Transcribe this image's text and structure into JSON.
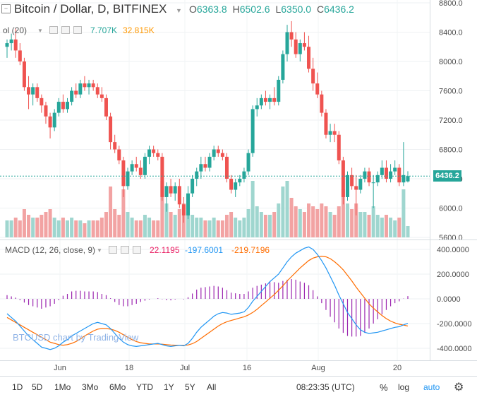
{
  "header": {
    "symbol": "Bitcoin / Dollar, D, BITFINEX",
    "o_label": "O",
    "o_val": "6363.8",
    "h_label": "H",
    "h_val": "6502.6",
    "l_label": "L",
    "l_val": "6350.0",
    "c_label": "C",
    "c_val": "6436.2",
    "vol_name": "ol (20)",
    "vol_a": "7.707K",
    "vol_b": "32.815K"
  },
  "macd_header": {
    "name": "MACD (12, 26, close, 9)",
    "hist": "22.1195",
    "macd": "-197.6001",
    "signal": "-219.7196"
  },
  "watermark": "BTCUSD chart by TradingView",
  "price_axis": {
    "ticks": [
      "8800.0",
      "8400.0",
      "8000.0",
      "7600.0",
      "7200.0",
      "6800.0",
      "6400.0",
      "6000.0",
      "5600.0"
    ],
    "last_price": "6436.2"
  },
  "macd_axis": {
    "ticks": [
      "400.0000",
      "200.0000",
      "0.0000",
      "-200.0000",
      "-400.0000"
    ]
  },
  "time_axis": [
    "Jun",
    "18",
    "Jul",
    "16",
    "Aug",
    "20"
  ],
  "toolbar": {
    "ranges": [
      "1D",
      "5D",
      "1Mo",
      "3Mo",
      "6Mo",
      "YTD",
      "1Y",
      "5Y",
      "All"
    ],
    "clock": "08:23:35 (UTC)",
    "percent": "%",
    "log": "log",
    "auto": "auto"
  },
  "colors": {
    "up": "#26a69a",
    "down": "#ef5350",
    "vol_up": "#9fd6cf",
    "vol_down": "#f2a3a3",
    "macd_line": "#2196f3",
    "signal_line": "#ff6d00",
    "histogram": "#9c27b0",
    "auto": "#2196f3"
  },
  "chart_data": {
    "type": "candlestick",
    "symbol": "BTCUSD",
    "price_ylim": [
      5600,
      8800
    ],
    "candles_ohlc": [
      [
        8200,
        8300,
        8050,
        8250
      ],
      [
        8250,
        8380,
        8150,
        8300
      ],
      [
        8300,
        8450,
        8050,
        8150
      ],
      [
        8150,
        8250,
        7950,
        8000
      ],
      [
        8000,
        8050,
        7600,
        7650
      ],
      [
        7650,
        7800,
        7350,
        7550
      ],
      [
        7550,
        7700,
        7400,
        7650
      ],
      [
        7650,
        7700,
        7450,
        7500
      ],
      [
        7500,
        7550,
        7300,
        7400
      ],
      [
        7400,
        7450,
        7150,
        7250
      ],
      [
        7250,
        7300,
        6950,
        7100
      ],
      [
        7100,
        7350,
        7050,
        7300
      ],
      [
        7300,
        7500,
        7250,
        7450
      ],
      [
        7450,
        7550,
        7300,
        7350
      ],
      [
        7350,
        7500,
        7300,
        7450
      ],
      [
        7450,
        7650,
        7400,
        7600
      ],
      [
        7600,
        7700,
        7500,
        7550
      ],
      [
        7550,
        7750,
        7500,
        7700
      ],
      [
        7700,
        7800,
        7600,
        7650
      ],
      [
        7650,
        7750,
        7550,
        7700
      ],
      [
        7700,
        7750,
        7600,
        7650
      ],
      [
        7650,
        7700,
        7500,
        7550
      ],
      [
        7550,
        7650,
        7450,
        7500
      ],
      [
        7500,
        7550,
        7200,
        7250
      ],
      [
        7250,
        7300,
        6800,
        6900
      ],
      [
        6900,
        7000,
        6750,
        6800
      ],
      [
        6800,
        6850,
        6600,
        6650
      ],
      [
        6650,
        6700,
        6150,
        6300
      ],
      [
        6300,
        6550,
        6250,
        6500
      ],
      [
        6500,
        6650,
        6450,
        6600
      ],
      [
        6600,
        6700,
        6500,
        6550
      ],
      [
        6550,
        6650,
        6400,
        6450
      ],
      [
        6450,
        6750,
        6400,
        6700
      ],
      [
        6700,
        6850,
        6600,
        6800
      ],
      [
        6800,
        6850,
        6700,
        6750
      ],
      [
        6750,
        6800,
        6650,
        6700
      ],
      [
        6700,
        6750,
        6100,
        6150
      ],
      [
        6150,
        6350,
        5950,
        6300
      ],
      [
        6300,
        6400,
        6150,
        6200
      ],
      [
        6200,
        6350,
        6100,
        6300
      ],
      [
        6300,
        6400,
        6000,
        6050
      ],
      [
        6050,
        6150,
        5800,
        5900
      ],
      [
        5900,
        6300,
        5850,
        6200
      ],
      [
        6200,
        6450,
        6150,
        6400
      ],
      [
        6400,
        6550,
        6300,
        6500
      ],
      [
        6500,
        6700,
        6400,
        6600
      ],
      [
        6600,
        6700,
        6500,
        6550
      ],
      [
        6550,
        6750,
        6500,
        6700
      ],
      [
        6700,
        6850,
        6650,
        6800
      ],
      [
        6800,
        6850,
        6700,
        6750
      ],
      [
        6750,
        6800,
        6650,
        6700
      ],
      [
        6700,
        6750,
        6350,
        6400
      ],
      [
        6400,
        6450,
        6200,
        6250
      ],
      [
        6250,
        6400,
        6150,
        6350
      ],
      [
        6350,
        6450,
        6300,
        6400
      ],
      [
        6400,
        6550,
        6350,
        6500
      ],
      [
        6500,
        6800,
        6450,
        6750
      ],
      [
        6750,
        7400,
        6700,
        7350
      ],
      [
        7350,
        7500,
        7250,
        7400
      ],
      [
        7400,
        7550,
        7350,
        7500
      ],
      [
        7500,
        7600,
        7400,
        7450
      ],
      [
        7450,
        7550,
        7350,
        7500
      ],
      [
        7500,
        7650,
        7400,
        7450
      ],
      [
        7450,
        7800,
        7400,
        7750
      ],
      [
        7750,
        8150,
        7700,
        8100
      ],
      [
        8100,
        8500,
        8000,
        8400
      ],
      [
        8400,
        8550,
        8200,
        8300
      ],
      [
        8300,
        8400,
        8050,
        8100
      ],
      [
        8100,
        8300,
        8000,
        8250
      ],
      [
        8250,
        8400,
        8150,
        8200
      ],
      [
        8200,
        8350,
        7850,
        7900
      ],
      [
        7900,
        8050,
        7600,
        7700
      ],
      [
        7700,
        7850,
        7500,
        7550
      ],
      [
        7550,
        7600,
        7250,
        7300
      ],
      [
        7300,
        7350,
        6950,
        7000
      ],
      [
        7000,
        7150,
        6900,
        7050
      ],
      [
        7050,
        7150,
        6900,
        7000
      ],
      [
        7000,
        7050,
        6600,
        6650
      ],
      [
        6650,
        6700,
        6050,
        6150
      ],
      [
        6150,
        6500,
        6100,
        6450
      ],
      [
        6450,
        6550,
        6250,
        6300
      ],
      [
        6300,
        6450,
        5900,
        6250
      ],
      [
        6250,
        6450,
        6200,
        6400
      ],
      [
        6400,
        6550,
        6350,
        6500
      ],
      [
        6500,
        6550,
        6300,
        6350
      ],
      [
        6350,
        6450,
        6000,
        6350
      ],
      [
        6350,
        6500,
        6300,
        6450
      ],
      [
        6450,
        6650,
        6400,
        6550
      ],
      [
        6550,
        6650,
        6350,
        6400
      ],
      [
        6400,
        6600,
        6350,
        6500
      ],
      [
        6500,
        6650,
        6450,
        6550
      ],
      [
        6550,
        6600,
        6300,
        6350
      ],
      [
        6350,
        6900,
        6300,
        6450
      ],
      [
        6363.8,
        6502.6,
        6350,
        6436.2
      ]
    ],
    "volume_relative": [
      0.3,
      0.3,
      0.35,
      0.3,
      0.5,
      0.4,
      0.35,
      0.35,
      0.4,
      0.45,
      0.5,
      0.35,
      0.3,
      0.35,
      0.3,
      0.35,
      0.3,
      0.3,
      0.25,
      0.3,
      0.3,
      0.3,
      0.35,
      0.45,
      0.9,
      0.5,
      0.4,
      0.85,
      0.45,
      0.35,
      0.3,
      0.3,
      0.4,
      0.35,
      0.3,
      0.3,
      1.0,
      0.6,
      0.45,
      0.4,
      0.5,
      0.6,
      0.45,
      0.4,
      0.35,
      0.35,
      0.3,
      0.3,
      0.35,
      0.3,
      0.3,
      0.4,
      0.45,
      0.35,
      0.3,
      0.35,
      0.5,
      1.0,
      0.55,
      0.45,
      0.4,
      0.4,
      0.45,
      0.6,
      0.9,
      1.0,
      0.7,
      0.55,
      0.5,
      0.45,
      0.6,
      0.55,
      0.5,
      0.6,
      0.55,
      0.45,
      0.4,
      0.55,
      0.85,
      0.6,
      0.5,
      0.6,
      0.45,
      0.45,
      0.4,
      0.55,
      0.4,
      0.35,
      0.4,
      0.35,
      0.3,
      0.35,
      0.85,
      0.2
    ],
    "macd_ylim": [
      -450,
      450
    ],
    "macd_line": [
      -120,
      -150,
      -180,
      -220,
      -260,
      -300,
      -330,
      -360,
      -390,
      -400,
      -410,
      -400,
      -380,
      -350,
      -330,
      -300,
      -280,
      -260,
      -240,
      -220,
      -200,
      -190,
      -200,
      -210,
      -240,
      -280,
      -320,
      -350,
      -370,
      -380,
      -385,
      -380,
      -375,
      -370,
      -365,
      -360,
      -370,
      -380,
      -385,
      -380,
      -375,
      -380,
      -360,
      -320,
      -270,
      -230,
      -200,
      -170,
      -140,
      -120,
      -110,
      -115,
      -125,
      -120,
      -115,
      -105,
      -70,
      -20,
      20,
      60,
      100,
      140,
      170,
      200,
      250,
      300,
      340,
      370,
      390,
      410,
      420,
      400,
      360,
      310,
      250,
      180,
      110,
      30,
      -40,
      -110,
      -160,
      -210,
      -250,
      -270,
      -280,
      -275,
      -270,
      -260,
      -250,
      -240,
      -230,
      -225,
      -210,
      -197.6
    ],
    "signal_line": [
      -150,
      -170,
      -190,
      -210,
      -230,
      -250,
      -270,
      -290,
      -310,
      -330,
      -350,
      -360,
      -370,
      -375,
      -370,
      -360,
      -345,
      -325,
      -300,
      -280,
      -260,
      -245,
      -240,
      -240,
      -245,
      -255,
      -270,
      -290,
      -310,
      -330,
      -345,
      -355,
      -360,
      -365,
      -365,
      -365,
      -367,
      -370,
      -373,
      -375,
      -375,
      -376,
      -373,
      -363,
      -345,
      -320,
      -295,
      -270,
      -245,
      -220,
      -200,
      -185,
      -175,
      -165,
      -155,
      -145,
      -130,
      -110,
      -85,
      -55,
      -25,
      5,
      35,
      70,
      105,
      145,
      180,
      215,
      250,
      280,
      310,
      330,
      340,
      345,
      340,
      325,
      300,
      270,
      235,
      190,
      145,
      95,
      50,
      5,
      -40,
      -75,
      -105,
      -135,
      -160,
      -180,
      -195,
      -205,
      -212,
      -219.7
    ]
  }
}
